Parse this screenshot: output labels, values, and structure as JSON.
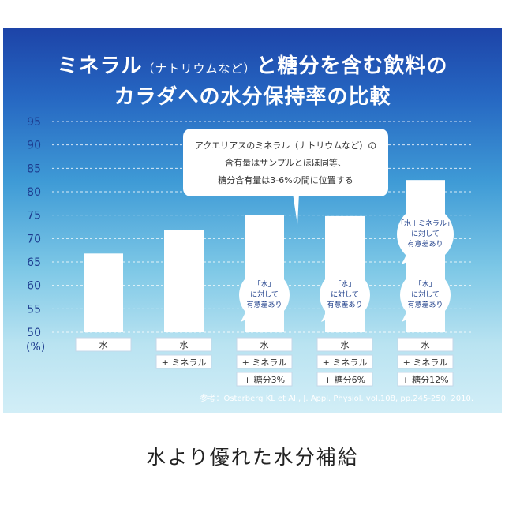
{
  "title": {
    "line1_main": "ミネラル",
    "line1_paren": "（ナトリウムなど）",
    "line1_rest": "と糖分を含む飲料の",
    "line2": "カラダへの水分保持率の比較"
  },
  "chart_data": {
    "type": "bar",
    "ylim": [
      50,
      95
    ],
    "yticks": [
      "95",
      "90",
      "85",
      "80",
      "75",
      "70",
      "65",
      "60",
      "55",
      "50"
    ],
    "yunit": "(%)",
    "categories": [
      [
        "水"
      ],
      [
        "水",
        "+ ミネラル"
      ],
      [
        "水",
        "+ ミネラル",
        "+ 糖分3%"
      ],
      [
        "水",
        "+ ミネラル",
        "+ 糖分6%"
      ],
      [
        "水",
        "+ ミネラル",
        "+ 糖分12%"
      ]
    ],
    "values": [
      66.8,
      71.8,
      75,
      74.8,
      82.5
    ],
    "bar_color": "#ffffff",
    "callout": [
      "アクエリアスのミネラル（ナトリウムなど）の",
      "含有量はサンプルとほぼ同等、",
      "糖分含有量は3-6%の間に位置する"
    ],
    "significance": [
      {
        "bar": 2,
        "lines": [
          "「水」",
          "に対して",
          "有意差あり"
        ]
      },
      {
        "bar": 3,
        "lines": [
          "「水」",
          "に対して",
          "有意差あり"
        ]
      },
      {
        "bar": 4,
        "lines": [
          "「水」",
          "に対して",
          "有意差あり"
        ]
      },
      {
        "bar": 4,
        "lines": [
          "「水＋ミネラル」",
          "に対して",
          "有意差あり"
        ]
      }
    ],
    "source": "参考：Osterberg KL et Al., J. Appl. Physiol. vol.108, pp.245-250, 2010."
  },
  "colors": {
    "axis_text": "#1d3c8f",
    "bubble_text": "#1f3f8a",
    "gridline": "#ffffff"
  },
  "footer": "水より優れた水分補給"
}
